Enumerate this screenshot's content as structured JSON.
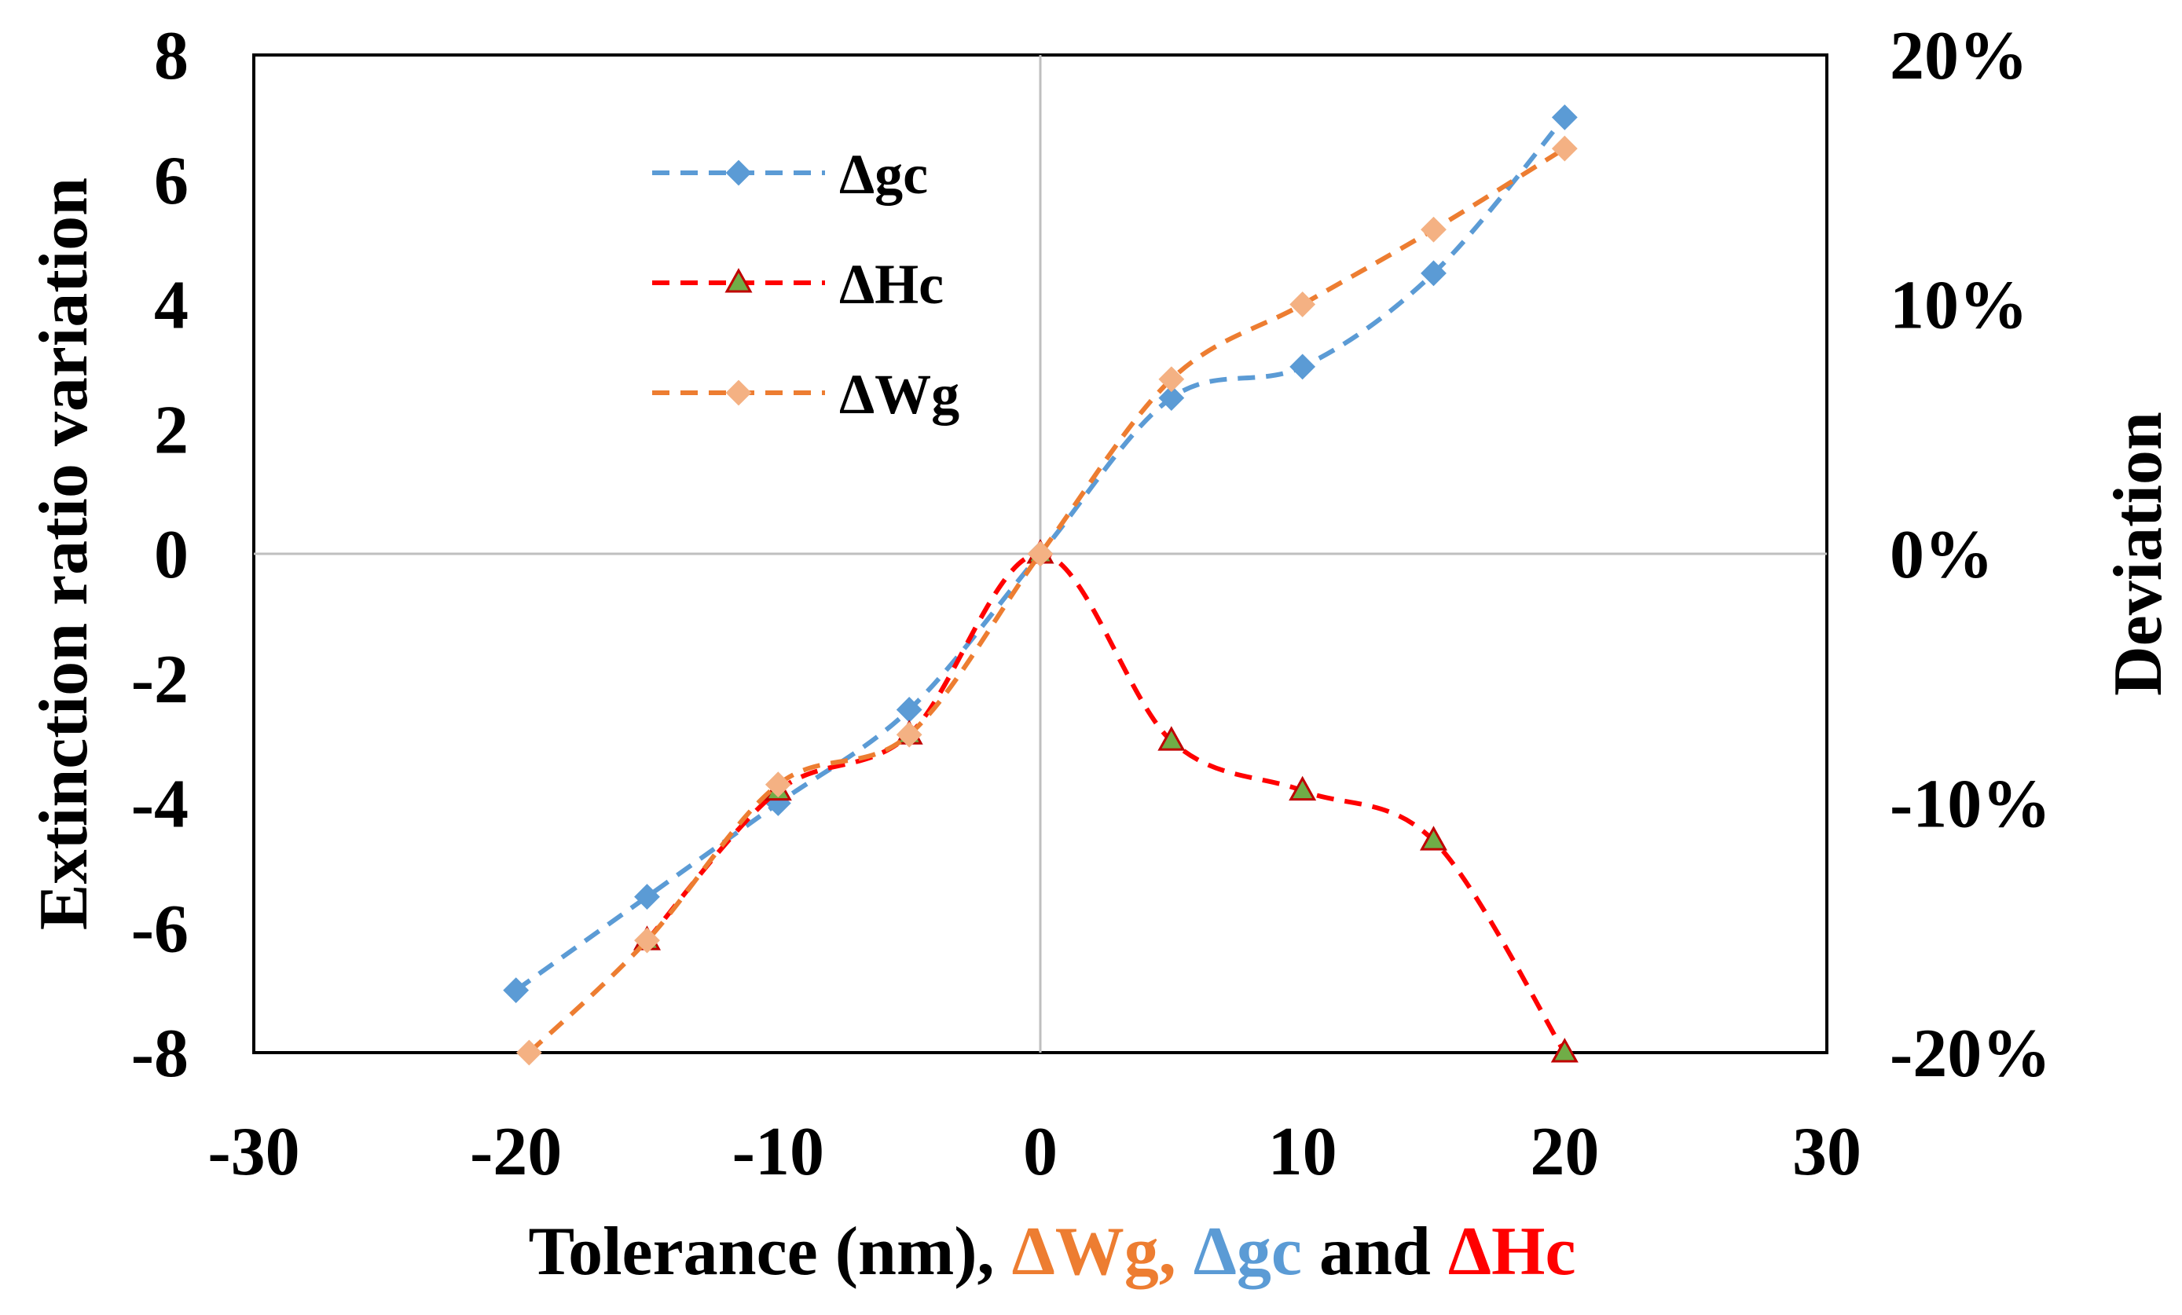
{
  "chart_data": {
    "type": "line",
    "xlabel_parts": [
      {
        "text": "Tolerance (nm), ",
        "color": "#000000"
      },
      {
        "text": "ΔWg",
        "color": "#ED7D31"
      },
      {
        "text": ", ",
        "color": "#ED7D31"
      },
      {
        "text": "Δgc",
        "color": "#5B9BD5"
      },
      {
        "text": "  and ",
        "color": "#000000"
      },
      {
        "text": "ΔHc",
        "color": "#FF0000"
      }
    ],
    "ylabel": "Extinction ratio variation",
    "y2label": "Deviation",
    "xlim": [
      -30,
      30
    ],
    "ylim": [
      -8,
      8
    ],
    "y2lim": [
      -0.2,
      0.2
    ],
    "xticks": [
      -30,
      -20,
      -10,
      0,
      10,
      20,
      30
    ],
    "yticks": [
      -8,
      -6,
      -4,
      -2,
      0,
      2,
      4,
      6,
      8
    ],
    "y2ticks": [
      "-20%",
      "-10%",
      "0%",
      "10%",
      "20%"
    ],
    "y2tick_values": [
      -0.2,
      -0.1,
      0,
      0.1,
      0.2
    ],
    "series": [
      {
        "name": "Δgc",
        "line_color": "#5B9BD5",
        "marker": "diamond",
        "marker_color": "#5B9BD5",
        "x": [
          -20,
          -15,
          -10,
          -5,
          0,
          5,
          10,
          15,
          20
        ],
        "y": [
          -7.0,
          -5.5,
          -4.0,
          -2.5,
          0,
          2.5,
          3.0,
          4.5,
          7.0
        ]
      },
      {
        "name": "ΔHc",
        "line_color": "#FF0000",
        "marker": "triangle",
        "marker_color": "#70AD47",
        "marker_edge": "#C00000",
        "x": [
          -15,
          -10,
          -5,
          0,
          5,
          10,
          15,
          20
        ],
        "y": [
          -6.2,
          -3.8,
          -2.9,
          0,
          -3.0,
          -3.8,
          -4.6,
          -8.0
        ]
      },
      {
        "name": "ΔWg",
        "line_color": "#ED7D31",
        "marker": "diamond",
        "marker_color": "#F4B183",
        "x": [
          -19.5,
          -15,
          -10,
          -5,
          0,
          5,
          10,
          15,
          20
        ],
        "y": [
          -8.0,
          -6.2,
          -3.7,
          -2.9,
          0,
          2.8,
          4.0,
          5.2,
          6.5
        ]
      }
    ],
    "legend": [
      "Δgc",
      "ΔHc",
      "ΔWg"
    ],
    "legend_position": "top-left"
  }
}
